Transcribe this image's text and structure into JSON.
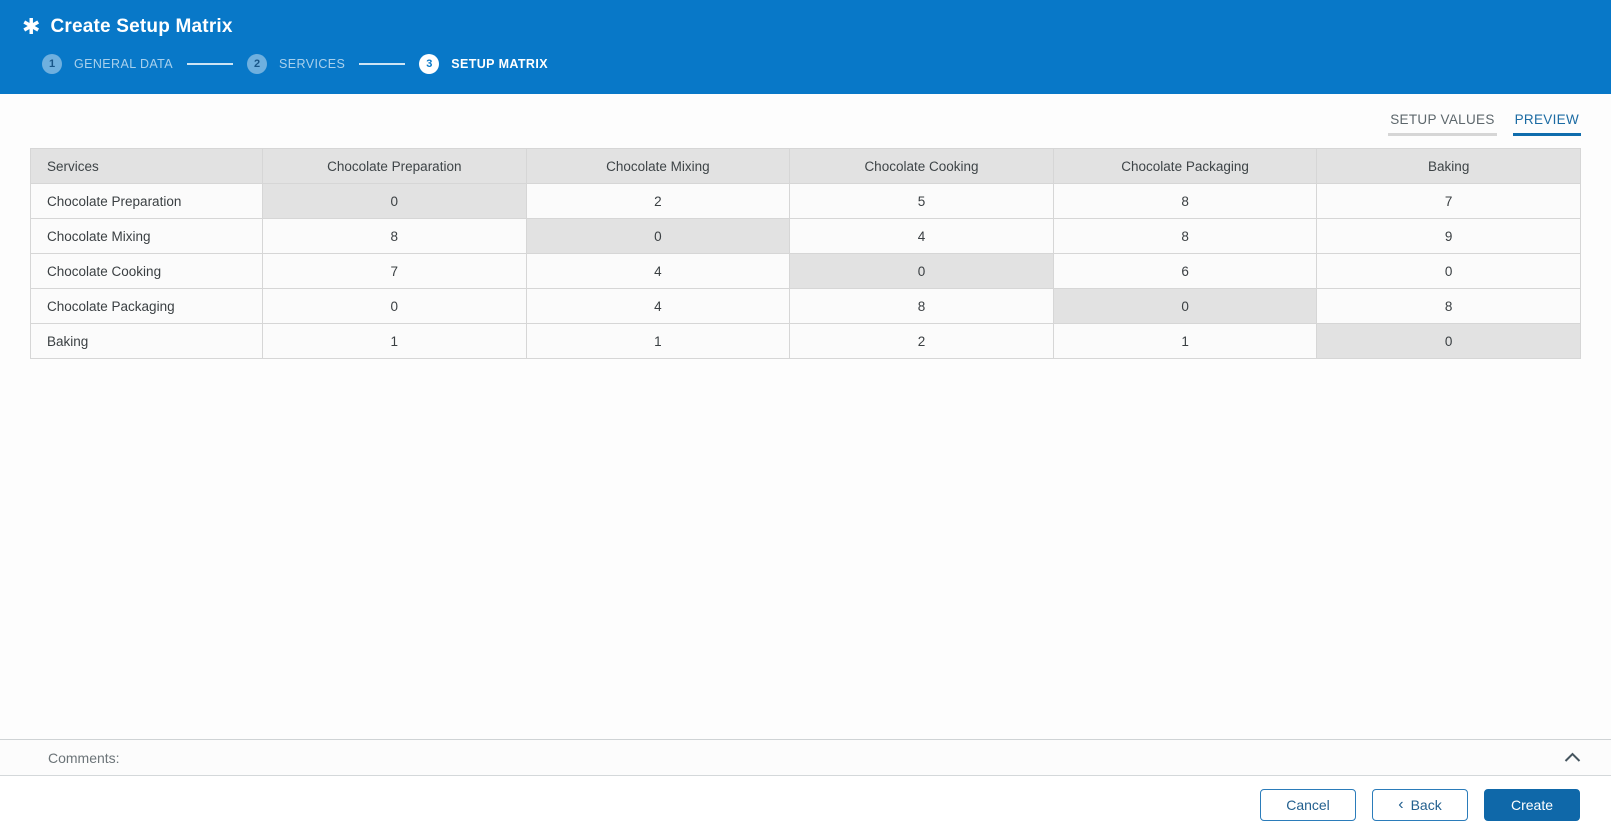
{
  "header": {
    "icon": "✱",
    "title": "Create Setup Matrix",
    "steps": [
      {
        "number": "1",
        "label": "GENERAL DATA",
        "active": false
      },
      {
        "number": "2",
        "label": "SERVICES",
        "active": false
      },
      {
        "number": "3",
        "label": "SETUP MATRIX",
        "active": true
      }
    ]
  },
  "tabs": [
    {
      "label": "SETUP VALUES",
      "active": false
    },
    {
      "label": "PREVIEW",
      "active": true
    }
  ],
  "matrix": {
    "corner_header": "Services",
    "columns": [
      "Chocolate Preparation",
      "Chocolate Mixing",
      "Chocolate Cooking",
      "Chocolate Packaging",
      "Baking"
    ],
    "rows": [
      {
        "label": "Chocolate Preparation",
        "values": [
          "0",
          "2",
          "5",
          "8",
          "7"
        ]
      },
      {
        "label": "Chocolate Mixing",
        "values": [
          "8",
          "0",
          "4",
          "8",
          "9"
        ]
      },
      {
        "label": "Chocolate Cooking",
        "values": [
          "7",
          "4",
          "0",
          "6",
          "0"
        ]
      },
      {
        "label": "Chocolate Packaging",
        "values": [
          "0",
          "4",
          "8",
          "0",
          "8"
        ]
      },
      {
        "label": "Baking",
        "values": [
          "1",
          "1",
          "2",
          "1",
          "0"
        ]
      }
    ],
    "diagonal_shaded": true
  },
  "comments": {
    "label": "Comments:"
  },
  "footer": {
    "cancel_label": "Cancel",
    "back_chevron": "‹",
    "back_label": "Back",
    "create_label": "Create"
  },
  "colors": {
    "header_blue": "#0878c8",
    "active_tab_underline": "#0f6dad",
    "active_tab_text": "#1b6ba3",
    "create_button": "#0f68a9",
    "outline_button_border": "#2b7cba",
    "table_header_bg": "#e2e2e2",
    "diagonal_cell_bg": "#e2e2e2",
    "row_bg": "#fbfbfb"
  }
}
